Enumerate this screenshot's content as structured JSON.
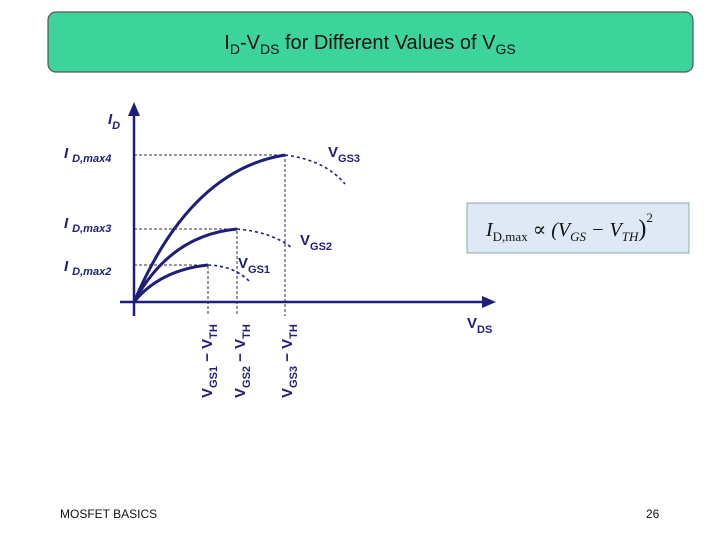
{
  "header": {
    "title": [
      "I",
      "D",
      "-V",
      "DS",
      " for Different Values of V",
      "GS"
    ]
  },
  "diagram": {
    "y_axis": {
      "main": "I",
      "sub": "D"
    },
    "x_axis": {
      "main": "V",
      "sub": "DS"
    },
    "y_labels": [
      {
        "main": "I",
        "sub": "D,max4"
      },
      {
        "main": "I",
        "sub": "D,max3"
      },
      {
        "main": "I",
        "sub": "D,max2"
      }
    ],
    "curve_labels": [
      {
        "main": "V",
        "sub": "GS3"
      },
      {
        "main": "V",
        "sub": "GS2"
      },
      {
        "main": "V",
        "sub": "GS1"
      }
    ],
    "x_labels": [
      [
        "V",
        "GS1",
        " − V",
        "TH"
      ],
      [
        "V",
        "GS2",
        " − V",
        "TH"
      ],
      [
        "V",
        "GS3",
        " − V",
        "TH"
      ]
    ],
    "formula": [
      "I",
      "D,max",
      " ∝ (V",
      "GS",
      " − V",
      "TH",
      ")",
      "2"
    ]
  },
  "footer": {
    "left": "MOSFET BASICS",
    "page": "26"
  }
}
